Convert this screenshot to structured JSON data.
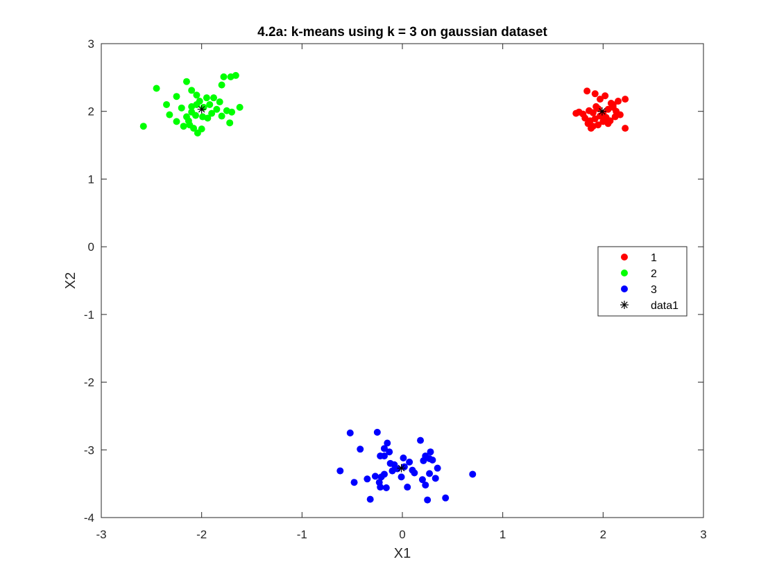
{
  "chart_data": {
    "type": "scatter",
    "title": "4.2a: k-means using k = 3 on gaussian dataset",
    "xlabel": "X1",
    "ylabel": "X2",
    "xlim": [
      -3,
      3
    ],
    "ylim": [
      -4,
      3
    ],
    "xticks": [
      -3,
      -2,
      -1,
      0,
      1,
      2,
      3
    ],
    "yticks": [
      -4,
      -3,
      -2,
      -1,
      0,
      1,
      2,
      3
    ],
    "xtick_labels": [
      "-3",
      "-2",
      "-1",
      "0",
      "1",
      "2",
      "3"
    ],
    "ytick_labels": [
      "-4",
      "-3",
      "-2",
      "-1",
      "0",
      "1",
      "2",
      "3"
    ],
    "grid": false,
    "legend_position": "right",
    "series": [
      {
        "name": "1",
        "color": "#ff0000",
        "marker": "circle",
        "points": [
          [
            1.84,
            2.3
          ],
          [
            1.92,
            2.26
          ],
          [
            1.97,
            2.18
          ],
          [
            2.02,
            2.23
          ],
          [
            2.08,
            2.12
          ],
          [
            2.15,
            2.15
          ],
          [
            2.22,
            2.18
          ],
          [
            1.76,
            1.99
          ],
          [
            1.73,
            1.97
          ],
          [
            1.8,
            1.96
          ],
          [
            1.86,
            2.01
          ],
          [
            1.9,
            1.98
          ],
          [
            1.95,
            2.04
          ],
          [
            2.0,
            1.97
          ],
          [
            2.05,
            2.03
          ],
          [
            2.1,
            2.06
          ],
          [
            2.13,
            2.0
          ],
          [
            2.17,
            1.95
          ],
          [
            1.82,
            1.9
          ],
          [
            1.87,
            1.86
          ],
          [
            1.92,
            1.89
          ],
          [
            1.97,
            1.93
          ],
          [
            2.03,
            1.91
          ],
          [
            2.07,
            1.86
          ],
          [
            2.12,
            1.92
          ],
          [
            1.85,
            1.82
          ],
          [
            1.9,
            1.78
          ],
          [
            1.95,
            1.8
          ],
          [
            2.0,
            1.85
          ],
          [
            2.05,
            1.82
          ],
          [
            1.88,
            1.75
          ],
          [
            2.22,
            1.75
          ],
          [
            2.1,
            2.1
          ],
          [
            1.93,
            2.07
          ]
        ]
      },
      {
        "name": "2",
        "color": "#00ff00",
        "marker": "circle",
        "points": [
          [
            -2.45,
            2.34
          ],
          [
            -2.15,
            2.44
          ],
          [
            -2.1,
            2.31
          ],
          [
            -1.78,
            2.51
          ],
          [
            -1.71,
            2.51
          ],
          [
            -1.66,
            2.53
          ],
          [
            -1.8,
            2.39
          ],
          [
            -2.35,
            2.1
          ],
          [
            -2.25,
            2.22
          ],
          [
            -2.05,
            2.24
          ],
          [
            -1.95,
            2.2
          ],
          [
            -1.88,
            2.2
          ],
          [
            -2.58,
            1.78
          ],
          [
            -1.62,
            2.06
          ],
          [
            -1.75,
            2.01
          ],
          [
            -1.7,
            1.99
          ],
          [
            -1.72,
            1.83
          ],
          [
            -1.8,
            1.93
          ],
          [
            -2.32,
            1.95
          ],
          [
            -2.25,
            1.85
          ],
          [
            -2.18,
            1.78
          ],
          [
            -2.12,
            1.8
          ],
          [
            -2.08,
            1.75
          ],
          [
            -2.04,
            1.68
          ],
          [
            -2.0,
            1.74
          ],
          [
            -1.94,
            1.9
          ],
          [
            -1.9,
            1.97
          ],
          [
            -1.85,
            2.03
          ],
          [
            -1.82,
            2.14
          ],
          [
            -2.2,
            2.05
          ],
          [
            -2.15,
            1.92
          ],
          [
            -2.1,
            1.99
          ],
          [
            -2.05,
            2.1
          ],
          [
            -2.02,
            2.15
          ],
          [
            -1.98,
            2.06
          ],
          [
            -2.06,
            1.94
          ],
          [
            -2.1,
            2.07
          ],
          [
            -1.92,
            2.1
          ],
          [
            -2.13,
            1.86
          ],
          [
            -1.99,
            1.92
          ]
        ]
      },
      {
        "name": "3",
        "color": "#0000ff",
        "marker": "circle",
        "points": [
          [
            -0.52,
            -2.75
          ],
          [
            -0.25,
            -2.74
          ],
          [
            0.18,
            -2.86
          ],
          [
            -0.42,
            -2.99
          ],
          [
            -0.15,
            -2.9
          ],
          [
            -0.18,
            -2.98
          ],
          [
            -0.13,
            -3.03
          ],
          [
            0.01,
            -3.12
          ],
          [
            0.07,
            -3.18
          ],
          [
            -0.22,
            -3.09
          ],
          [
            -0.18,
            -3.09
          ],
          [
            0.23,
            -3.09
          ],
          [
            0.28,
            -3.03
          ],
          [
            0.3,
            -3.15
          ],
          [
            0.27,
            -3.13
          ],
          [
            0.21,
            -3.16
          ],
          [
            -0.62,
            -3.31
          ],
          [
            -0.48,
            -3.48
          ],
          [
            -0.35,
            -3.43
          ],
          [
            -0.27,
            -3.39
          ],
          [
            -0.21,
            -3.4
          ],
          [
            -0.18,
            -3.36
          ],
          [
            -0.1,
            -3.31
          ],
          [
            -0.05,
            -3.28
          ],
          [
            0.02,
            -3.25
          ],
          [
            0.12,
            -3.34
          ],
          [
            0.2,
            -3.44
          ],
          [
            0.27,
            -3.35
          ],
          [
            0.33,
            -3.42
          ],
          [
            0.35,
            -3.27
          ],
          [
            0.7,
            -3.36
          ],
          [
            -0.22,
            -3.55
          ],
          [
            -0.16,
            -3.56
          ],
          [
            0.05,
            -3.55
          ],
          [
            0.23,
            -3.52
          ],
          [
            -0.32,
            -3.73
          ],
          [
            0.25,
            -3.74
          ],
          [
            0.43,
            -3.71
          ],
          [
            -0.08,
            -3.22
          ],
          [
            0.1,
            -3.3
          ],
          [
            -0.23,
            -3.48
          ],
          [
            -0.12,
            -3.2
          ],
          [
            -0.01,
            -3.4
          ]
        ]
      },
      {
        "name": "data1",
        "color": "#000000",
        "marker": "asterisk",
        "points": [
          [
            1.99,
            2.0
          ],
          [
            -2.0,
            2.03
          ],
          [
            -0.01,
            -3.27
          ]
        ]
      }
    ]
  }
}
